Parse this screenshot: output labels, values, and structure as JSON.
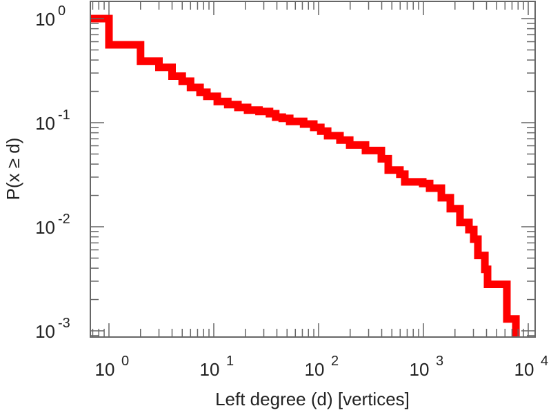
{
  "chart_data": {
    "type": "line",
    "style": "step",
    "title": "",
    "xlabel": "Left degree (d) [vertices]",
    "ylabel": "P(x ≥ d)",
    "xscale": "log",
    "yscale": "log",
    "xlim": [
      0.68,
      11500
    ],
    "ylim": [
      0.00087,
      1.1
    ],
    "grid": false,
    "series_color": "#ff0000",
    "x_ticks": [
      {
        "base": "10",
        "exp": "0",
        "value": 1
      },
      {
        "base": "10",
        "exp": "1",
        "value": 10
      },
      {
        "base": "10",
        "exp": "2",
        "value": 100
      },
      {
        "base": "10",
        "exp": "3",
        "value": 1000
      },
      {
        "base": "10",
        "exp": "4",
        "value": 10000
      }
    ],
    "y_ticks": [
      {
        "base": "10",
        "exp": "0",
        "value": 1
      },
      {
        "base": "10",
        "exp": "-1",
        "value": 0.1
      },
      {
        "base": "10",
        "exp": "-2",
        "value": 0.01
      },
      {
        "base": "10",
        "exp": "-3",
        "value": 0.001
      }
    ],
    "start_value": 1,
    "series": [
      {
        "name": "P(x ≥ d)",
        "points": [
          [
            1,
            0.56
          ],
          [
            2,
            0.39
          ],
          [
            3,
            0.34
          ],
          [
            4,
            0.28
          ],
          [
            5,
            0.25
          ],
          [
            6,
            0.218
          ],
          [
            7.4,
            0.196
          ],
          [
            8.6,
            0.179
          ],
          [
            10.8,
            0.16
          ],
          [
            13.6,
            0.149
          ],
          [
            17,
            0.14
          ],
          [
            21,
            0.132
          ],
          [
            27,
            0.128
          ],
          [
            34,
            0.122
          ],
          [
            39,
            0.113
          ],
          [
            45,
            0.11
          ],
          [
            53,
            0.103
          ],
          [
            72,
            0.097
          ],
          [
            90,
            0.09
          ],
          [
            105,
            0.083
          ],
          [
            122,
            0.075
          ],
          [
            160,
            0.068
          ],
          [
            198,
            0.061
          ],
          [
            280,
            0.054
          ],
          [
            397,
            0.045
          ],
          [
            462,
            0.035
          ],
          [
            597,
            0.032
          ],
          [
            664,
            0.027
          ],
          [
            985,
            0.026
          ],
          [
            1146,
            0.0235
          ],
          [
            1483,
            0.019
          ],
          [
            1806,
            0.0149
          ],
          [
            2233,
            0.011
          ],
          [
            2717,
            0.0094
          ],
          [
            3020,
            0.0076
          ],
          [
            3311,
            0.0053
          ],
          [
            3855,
            0.0039
          ],
          [
            4090,
            0.0028
          ],
          [
            6250,
            0.0013
          ],
          [
            7620,
            0.0005
          ]
        ]
      }
    ]
  }
}
